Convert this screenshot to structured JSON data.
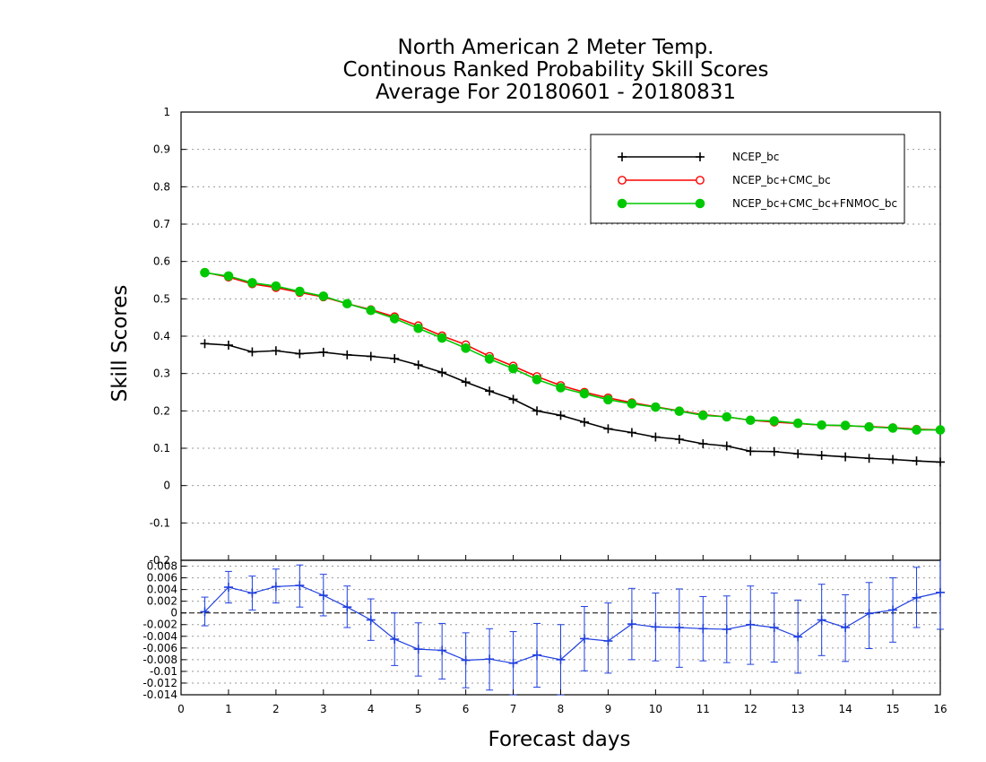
{
  "chart_data": {
    "type": "line",
    "title_lines": [
      "North American 2 Meter Temp.",
      "Continous Ranked Probability Skill Scores",
      "Average For 20180601 - 20180831"
    ],
    "xlabel": "Forecast days",
    "ylabel": "Skill Scores",
    "xlim": [
      0,
      16
    ],
    "x_ticks": [
      "0",
      "1",
      "2",
      "3",
      "4",
      "5",
      "6",
      "7",
      "8",
      "9",
      "10",
      "11",
      "12",
      "13",
      "14",
      "15",
      "16"
    ],
    "top_panel": {
      "ylim": [
        -0.2,
        1
      ],
      "y_ticks": [
        "-0.2",
        "-0.1",
        "0",
        "0.1",
        "0.2",
        "0.3",
        "0.4",
        "0.5",
        "0.6",
        "0.7",
        "0.8",
        "0.9",
        "1"
      ],
      "legend_position": "top-right",
      "x": [
        0.5,
        1,
        1.5,
        2,
        2.5,
        3,
        3.5,
        4,
        4.5,
        5,
        5.5,
        6,
        6.5,
        7,
        7.5,
        8,
        8.5,
        9,
        9.5,
        10,
        10.5,
        11,
        11.5,
        12,
        12.5,
        13,
        13.5,
        14,
        14.5,
        15,
        15.5,
        16
      ],
      "series": [
        {
          "name": "NCEP_bc",
          "color": "#000000",
          "marker": "plus",
          "values": [
            0.38,
            0.376,
            0.358,
            0.361,
            0.353,
            0.357,
            0.35,
            0.346,
            0.34,
            0.323,
            0.303,
            0.277,
            0.253,
            0.231,
            0.2,
            0.188,
            0.17,
            0.152,
            0.142,
            0.13,
            0.124,
            0.112,
            0.106,
            0.092,
            0.091,
            0.085,
            0.081,
            0.077,
            0.073,
            0.07,
            0.066,
            0.063
          ]
        },
        {
          "name": "NCEP_bc+CMC_bc",
          "color": "#ff0000",
          "marker": "open-circle",
          "values": [
            0.571,
            0.558,
            0.54,
            0.53,
            0.517,
            0.505,
            0.487,
            0.471,
            0.452,
            0.428,
            0.401,
            0.377,
            0.346,
            0.32,
            0.292,
            0.268,
            0.25,
            0.235,
            0.222,
            0.211,
            0.2,
            0.19,
            0.184,
            0.175,
            0.17,
            0.166,
            0.162,
            0.16,
            0.158,
            0.155,
            0.151,
            0.149
          ]
        },
        {
          "name": "NCEP_bc+CMC_bc+FNMOC_bc",
          "color": "#00c800",
          "marker": "filled-circle",
          "values": [
            0.57,
            0.561,
            0.543,
            0.534,
            0.52,
            0.507,
            0.487,
            0.469,
            0.447,
            0.421,
            0.395,
            0.368,
            0.339,
            0.313,
            0.284,
            0.262,
            0.246,
            0.23,
            0.219,
            0.21,
            0.199,
            0.188,
            0.184,
            0.175,
            0.173,
            0.167,
            0.162,
            0.161,
            0.157,
            0.154,
            0.149,
            0.149
          ]
        }
      ]
    },
    "bottom_panel": {
      "ylim": [
        -0.014,
        0.009
      ],
      "y_ticks": [
        "-0.014",
        "-0.012",
        "-0.01",
        "-0.008",
        "-0.006",
        "-0.004",
        "-0.002",
        "0",
        "0.002",
        "0.004",
        "0.006",
        "0.008"
      ],
      "reference_line": 0,
      "color": "#1f3fe0",
      "x": [
        0.5,
        1,
        1.5,
        2,
        2.5,
        3,
        3.5,
        4,
        4.5,
        5,
        5.5,
        6,
        6.5,
        7,
        7.5,
        8,
        8.5,
        9,
        9.5,
        10,
        10.5,
        11,
        11.5,
        12,
        12.5,
        13,
        13.5,
        14,
        14.5,
        15,
        15.5,
        16
      ],
      "values": [
        0.0002,
        0.0044,
        0.0034,
        0.0045,
        0.0047,
        0.003,
        0.001,
        -0.0012,
        -0.0045,
        -0.0062,
        -0.0064,
        -0.0081,
        -0.0079,
        -0.0086,
        -0.0072,
        -0.008,
        -0.0044,
        -0.0048,
        -0.0019,
        -0.0024,
        -0.0025,
        -0.0027,
        -0.0028,
        -0.002,
        -0.0025,
        -0.0041,
        -0.0012,
        -0.0025,
        -0.0001,
        0.0005,
        0.0026,
        0.0035
      ],
      "err_low": [
        -0.0022,
        0.0017,
        0.0005,
        0.0017,
        0.001,
        -0.0005,
        -0.0025,
        -0.0047,
        -0.009,
        -0.0108,
        -0.0113,
        -0.0128,
        -0.0132,
        -0.014,
        -0.0127,
        -0.014,
        -0.0099,
        -0.0103,
        -0.008,
        -0.0082,
        -0.0093,
        -0.0082,
        -0.0085,
        -0.0088,
        -0.0084,
        -0.0103,
        -0.0073,
        -0.0083,
        -0.0061,
        -0.005,
        -0.0025,
        -0.0028
      ],
      "err_high": [
        0.0027,
        0.0071,
        0.0063,
        0.0075,
        0.0082,
        0.0066,
        0.0046,
        0.0024,
        0.0,
        -0.0017,
        -0.0018,
        -0.0034,
        -0.0027,
        -0.0032,
        -0.0018,
        -0.002,
        0.0011,
        0.0017,
        0.0042,
        0.0034,
        0.0041,
        0.0028,
        0.0029,
        0.0046,
        0.0034,
        0.0022,
        0.0049,
        0.0031,
        0.0052,
        0.006,
        0.0078,
        0.0098
      ]
    }
  }
}
